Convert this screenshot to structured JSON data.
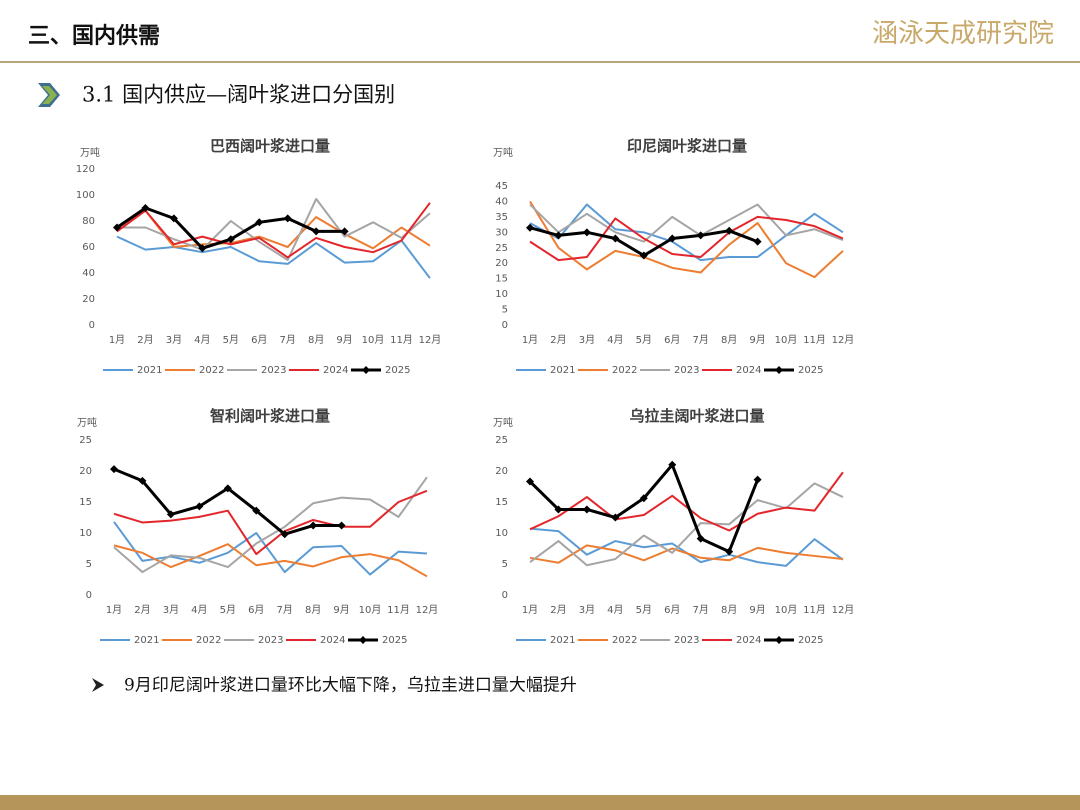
{
  "header": {
    "title": "三、国内供需",
    "logo": "涵泳天成研究院"
  },
  "section": {
    "title": "3.1 国内供应—阔叶浆进口分国别"
  },
  "bullet": {
    "text": "9月印尼阔叶浆进口量环比大幅下降，乌拉圭进口量大幅提升"
  },
  "chart_data": [
    {
      "type": "line",
      "title": "巴西阔叶浆进口量",
      "unit": "万吨",
      "categories": [
        "1月",
        "2月",
        "3月",
        "4月",
        "5月",
        "6月",
        "7月",
        "8月",
        "9月",
        "10月",
        "11月",
        "12月"
      ],
      "ylim": [
        0,
        120
      ],
      "yticks": [
        0,
        20,
        40,
        60,
        80,
        100,
        120
      ],
      "legend": "bottom",
      "series": [
        {
          "name": "2021",
          "color": "#5b9bd5",
          "values": [
            68,
            58,
            60,
            56,
            60,
            49,
            47,
            63,
            48,
            49,
            65,
            36
          ]
        },
        {
          "name": "2022",
          "color": "#ed7d31",
          "values": [
            74,
            88,
            60,
            62,
            63,
            68,
            60,
            83,
            70,
            59,
            75,
            61
          ]
        },
        {
          "name": "2023",
          "color": "#a5a5a5",
          "values": [
            75,
            75,
            66,
            58,
            80,
            64,
            50,
            97,
            68,
            79,
            67,
            86
          ]
        },
        {
          "name": "2024",
          "color": "#e3262b",
          "values": [
            72,
            88,
            62,
            68,
            62,
            67,
            52,
            67,
            60,
            56,
            65,
            94
          ]
        },
        {
          "name": "2025",
          "color": "#000000",
          "marker": "diamond",
          "values": [
            75,
            90,
            82,
            59,
            66,
            79,
            82,
            72,
            72,
            null,
            null,
            null
          ]
        }
      ]
    },
    {
      "type": "line",
      "title": "印尼阔叶浆进口量",
      "unit": "万吨",
      "categories": [
        "1月",
        "2月",
        "3月",
        "4月",
        "5月",
        "6月",
        "7月",
        "8月",
        "9月",
        "10月",
        "11月",
        "12月"
      ],
      "ylim": [
        0,
        45
      ],
      "yticks": [
        0,
        5,
        10,
        15,
        20,
        25,
        30,
        35,
        40,
        45
      ],
      "legend": "bottom",
      "series": [
        {
          "name": "2021",
          "color": "#5b9bd5",
          "values": [
            33,
            28,
            39,
            31,
            30,
            27,
            21,
            22,
            22,
            29,
            36,
            30
          ]
        },
        {
          "name": "2022",
          "color": "#ed7d31",
          "values": [
            40,
            25,
            18,
            24,
            22,
            18.5,
            17,
            26,
            33,
            20,
            15.5,
            24
          ]
        },
        {
          "name": "2023",
          "color": "#a5a5a5",
          "values": [
            39,
            30,
            36,
            30,
            27,
            35,
            29,
            34,
            39,
            29,
            31,
            27.5
          ]
        },
        {
          "name": "2024",
          "color": "#e3262b",
          "values": [
            27,
            21,
            22,
            34.5,
            28,
            23,
            22,
            30,
            35,
            34,
            32,
            28
          ]
        },
        {
          "name": "2025",
          "color": "#000000",
          "marker": "diamond",
          "values": [
            31.5,
            29,
            30,
            28,
            22.5,
            28,
            29,
            30.5,
            27,
            null,
            null,
            null
          ]
        }
      ]
    },
    {
      "type": "line",
      "title": "智利阔叶浆进口量",
      "unit": "万吨",
      "categories": [
        "1月",
        "2月",
        "3月",
        "4月",
        "5月",
        "6月",
        "7月",
        "8月",
        "9月",
        "10月",
        "11月",
        "12月"
      ],
      "ylim": [
        0,
        25
      ],
      "yticks": [
        0,
        5,
        10,
        15,
        20,
        25
      ],
      "legend": "bottom",
      "series": [
        {
          "name": "2021",
          "color": "#5b9bd5",
          "values": [
            11.8,
            5.5,
            6.2,
            5.2,
            6.8,
            10,
            3.7,
            7.7,
            7.9,
            3.3,
            7,
            6.7
          ]
        },
        {
          "name": "2022",
          "color": "#ed7d31",
          "values": [
            8,
            6.8,
            4.5,
            6.3,
            8.2,
            4.8,
            5.5,
            4.6,
            6.1,
            6.6,
            5.6,
            3
          ]
        },
        {
          "name": "2023",
          "color": "#a5a5a5",
          "values": [
            7.7,
            3.7,
            6.4,
            6,
            4.5,
            8.3,
            11,
            14.8,
            15.7,
            15.4,
            12.6,
            19
          ]
        },
        {
          "name": "2024",
          "color": "#e3262b",
          "values": [
            13.1,
            11.7,
            12,
            12.6,
            13.6,
            6.6,
            10.3,
            12.1,
            11,
            11,
            15,
            16.8
          ]
        },
        {
          "name": "2025",
          "color": "#000000",
          "marker": "diamond",
          "values": [
            20.3,
            18.4,
            13,
            14.3,
            17.2,
            13.6,
            9.8,
            11.2,
            11.2,
            null,
            null,
            null
          ]
        }
      ]
    },
    {
      "type": "line",
      "title": "乌拉圭阔叶浆进口量",
      "unit": "万吨",
      "categories": [
        "1月",
        "2月",
        "3月",
        "4月",
        "5月",
        "6月",
        "7月",
        "8月",
        "9月",
        "10月",
        "11月",
        "12月"
      ],
      "ylim": [
        0,
        25
      ],
      "yticks": [
        0,
        5,
        10,
        15,
        20,
        25
      ],
      "legend": "bottom",
      "series": [
        {
          "name": "2021",
          "color": "#5b9bd5",
          "values": [
            10.7,
            10.3,
            6.5,
            8.7,
            7.7,
            8.3,
            5.3,
            6.5,
            5.3,
            4.7,
            9,
            5.7
          ]
        },
        {
          "name": "2022",
          "color": "#ed7d31",
          "values": [
            6,
            5.2,
            8,
            7.2,
            5.6,
            7.5,
            6,
            5.6,
            7.6,
            6.8,
            6.3,
            5.8
          ]
        },
        {
          "name": "2023",
          "color": "#a5a5a5",
          "values": [
            5.3,
            8.7,
            4.8,
            5.8,
            9.6,
            6.8,
            11.6,
            11.4,
            15.3,
            14,
            18,
            15.8
          ]
        },
        {
          "name": "2024",
          "color": "#e3262b",
          "values": [
            10.6,
            12.7,
            15.8,
            12.2,
            12.9,
            16,
            12.4,
            10.4,
            13.1,
            14.1,
            13.6,
            19.8
          ]
        },
        {
          "name": "2025",
          "color": "#000000",
          "marker": "diamond",
          "values": [
            18.3,
            13.8,
            13.8,
            12.5,
            15.6,
            21,
            9.1,
            7,
            18.6,
            null,
            null,
            null
          ]
        }
      ]
    }
  ]
}
